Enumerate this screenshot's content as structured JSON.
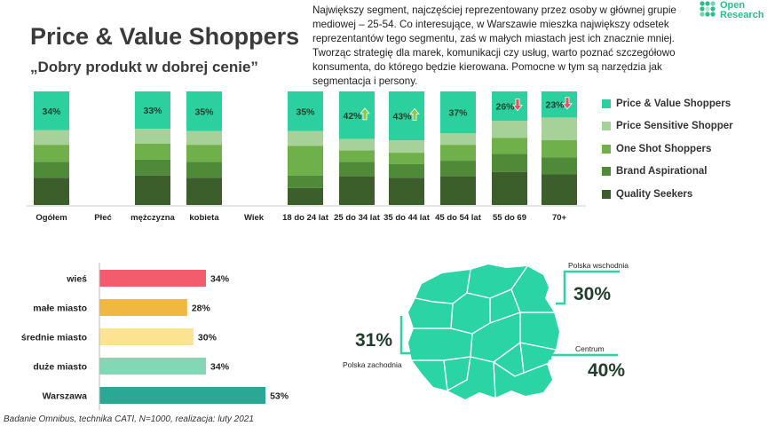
{
  "header": {
    "title": "Price & Value Shoppers",
    "subtitle": "„Dobry produkt w dobrej cenie”",
    "description": "Największy segment, najczęściej reprezentowany przez osoby w głównej grupie mediowej – 25-54. Co interesujące, w Warszawie mieszka największy odsetek reprezentantów tego segmentu, zaś w małych miastach jest ich znacznie mniej. Tworząc strategię dla marek, komunikacji czy usług, warto poznać szczegółowo konsumenta, do którego będzie kierowana. Pomocne w tym są narzędzia jak segmentacja i persony."
  },
  "logo": {
    "line1": "Open",
    "line2": "Research",
    "color": "#2abf8a"
  },
  "footer": "Badanie Omnibus, technika CATI, N=1000, realizacja: luty 2021",
  "chart_data": [
    {
      "type": "bar",
      "stacked": true,
      "normalized": true,
      "categories": [
        "Ogółem",
        "Płeć",
        "mężczyzna",
        "kobieta",
        "Wiek",
        "18 do 24 lat",
        "25 do 34 lat",
        "35 do 44 lat",
        "45 do 54 lat",
        "55 do 69",
        "70+"
      ],
      "legend_position": "right",
      "series": [
        {
          "name": "Price & Value Shoppers",
          "color": "#2ccf9e",
          "values": [
            34,
            null,
            33,
            35,
            null,
            35,
            42,
            43,
            37,
            26,
            23
          ]
        },
        {
          "name": "Price Sensitive Shopper",
          "color": "#a6d29a",
          "values": [
            13,
            null,
            13,
            12,
            null,
            13,
            10,
            11,
            10,
            15,
            20
          ]
        },
        {
          "name": "One Shot Shoppers",
          "color": "#6fb04a",
          "values": [
            15,
            null,
            14,
            15,
            null,
            26,
            10,
            10,
            14,
            14,
            15
          ]
        },
        {
          "name": "Brand Aspirational",
          "color": "#4f8a38",
          "values": [
            14,
            null,
            14,
            14,
            null,
            11,
            13,
            12,
            14,
            16,
            15
          ]
        },
        {
          "name": "Quality Seekers",
          "color": "#3b5e2a",
          "values": [
            24,
            null,
            26,
            24,
            null,
            15,
            25,
            24,
            25,
            29,
            27
          ]
        }
      ],
      "labels": [
        "34%",
        "",
        "33%",
        "35%",
        "",
        "35%",
        "42%",
        "43%",
        "37%",
        "26%",
        "23%"
      ],
      "trend_arrows": [
        null,
        null,
        null,
        null,
        null,
        null,
        "up",
        "up",
        null,
        "down",
        "down"
      ],
      "arrow_colors": {
        "up": "#8dc63f",
        "down": "#e8505b"
      }
    },
    {
      "type": "bar",
      "orientation": "horizontal",
      "categories": [
        "wieś",
        "małe miasto",
        "średnie miasto",
        "duże miasto",
        "Warszawa"
      ],
      "values": [
        34,
        28,
        30,
        34,
        53
      ],
      "labels": [
        "34%",
        "28%",
        "30%",
        "34%",
        "53%"
      ],
      "colors": [
        "#f25c6c",
        "#f0b840",
        "#fbe391",
        "#82d8b4",
        "#2aa893"
      ]
    },
    {
      "type": "map",
      "regions": [
        {
          "name": "Polska wschodnia",
          "value": "30%"
        },
        {
          "name": "Polska zachodnia",
          "value": "31%"
        },
        {
          "name": "Centrum",
          "value": "40%"
        }
      ],
      "map_color": "#2bd4a4"
    }
  ]
}
